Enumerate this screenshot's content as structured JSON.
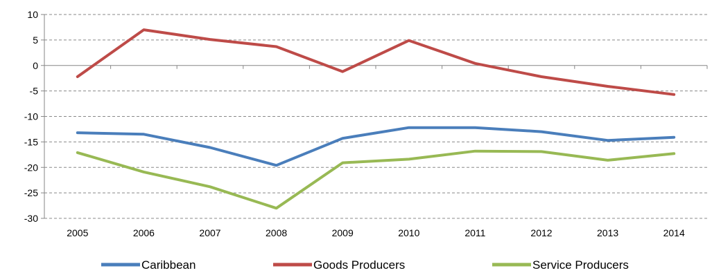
{
  "chart_data": {
    "type": "line",
    "title": "",
    "xlabel": "",
    "ylabel": "",
    "categories": [
      "2005",
      "2006",
      "2007",
      "2008",
      "2009",
      "2010",
      "2011",
      "2012",
      "2013",
      "2014"
    ],
    "ylim": [
      -30,
      10
    ],
    "yticks": [
      10,
      5,
      0,
      -5,
      -10,
      -15,
      -20,
      -25,
      -30
    ],
    "grid": "horizontal dashed",
    "legend_position": "bottom",
    "series": [
      {
        "name": "Caribbean",
        "color": "#4a7ebb",
        "values": [
          -13.2,
          -13.5,
          -16.1,
          -19.6,
          -14.3,
          -12.2,
          -12.2,
          -13.0,
          -14.7,
          -14.1
        ]
      },
      {
        "name": "Goods Producers",
        "color": "#be4b48",
        "values": [
          -2.2,
          7.0,
          5.1,
          3.7,
          -1.2,
          4.9,
          0.4,
          -2.2,
          -4.1,
          -5.7
        ]
      },
      {
        "name": "Service Producers",
        "color": "#98b954",
        "values": [
          -17.1,
          -20.9,
          -23.8,
          -28.0,
          -19.1,
          -18.4,
          -16.8,
          -16.9,
          -18.6,
          -17.3
        ]
      }
    ]
  }
}
